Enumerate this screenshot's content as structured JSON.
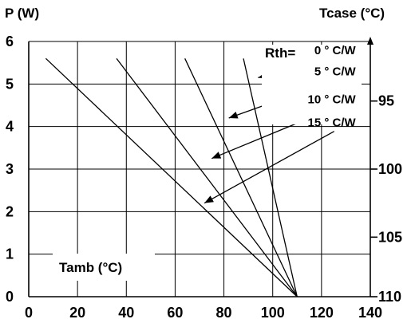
{
  "chart_data": {
    "type": "line",
    "ylabel": "P (W)",
    "y2label": "Tcase (°C)",
    "xlabel": "Tamb (°C)",
    "rth_label": "Rth=",
    "xlim": [
      0,
      140
    ],
    "ylim": [
      0,
      6
    ],
    "x_ticks": [
      "0",
      "20",
      "40",
      "60",
      "80",
      "100",
      "120",
      "140"
    ],
    "y_ticks": [
      "0",
      "1",
      "2",
      "3",
      "4",
      "5",
      "6"
    ],
    "y2_ticks": [
      {
        "label": "95",
        "p": 4.6
      },
      {
        "label": "100",
        "p": 3.0
      },
      {
        "label": "105",
        "p": 1.4
      },
      {
        "label": "110",
        "p": 0.0
      }
    ],
    "grid": true,
    "series": [
      {
        "name": "0 ° C/W",
        "points": [
          [
            88,
            5.6
          ],
          [
            110,
            0
          ]
        ]
      },
      {
        "name": "5 ° C/W",
        "points": [
          [
            64,
            5.6
          ],
          [
            110,
            0
          ]
        ]
      },
      {
        "name": "10 ° C/W",
        "points": [
          [
            36,
            5.6
          ],
          [
            110,
            0
          ]
        ]
      },
      {
        "name": "15 ° C/W",
        "points": [
          [
            7,
            5.6
          ],
          [
            110,
            0
          ]
        ]
      }
    ],
    "series_label_anchor": [
      {
        "label_pos": [
          135,
          5.7
        ],
        "target": [
          94,
          5.15
        ]
      },
      {
        "label_pos": [
          135,
          5.2
        ],
        "target": [
          82,
          4.2
        ]
      },
      {
        "label_pos": [
          135,
          4.55
        ],
        "target": [
          75,
          3.25
        ]
      },
      {
        "label_pos": [
          135,
          4.0
        ],
        "target": [
          72,
          2.2
        ]
      }
    ]
  }
}
